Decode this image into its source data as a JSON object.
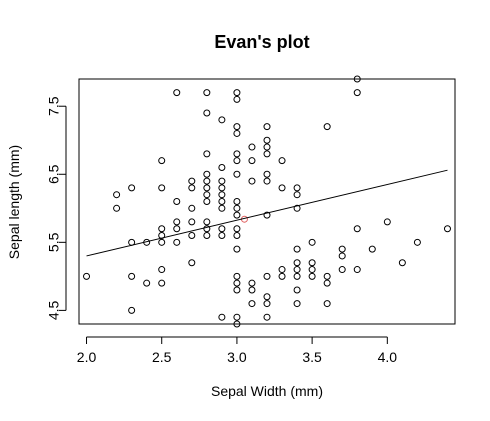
{
  "chart_data": {
    "type": "scatter",
    "title": "Evan's plot",
    "xlabel": "Sepal Width (mm)",
    "ylabel": "Sepal length (mm)",
    "xlim": [
      1.95,
      4.45
    ],
    "ylim": [
      4.3,
      7.9
    ],
    "xticks": [
      "2.0",
      "2.5",
      "3.0",
      "3.5",
      "4.0"
    ],
    "yticks": [
      "4.5",
      "5.5",
      "6.5",
      "7.5"
    ],
    "grid": false,
    "legend": "none",
    "colors": {
      "point_stroke": "#000000",
      "highlight_point_stroke": "#e06060",
      "trend_line": "#000000",
      "axes": "#000000",
      "background": "#ffffff"
    },
    "trend_line": {
      "x": [
        2.0,
        4.4
      ],
      "y": [
        5.3,
        6.56
      ]
    },
    "highlight_point": {
      "x": 3.05,
      "y": 5.84
    },
    "points": [
      [
        2.0,
        5.0
      ],
      [
        2.2,
        6.0
      ],
      [
        2.2,
        6.2
      ],
      [
        2.3,
        4.5
      ],
      [
        2.3,
        5.0
      ],
      [
        2.3,
        5.5
      ],
      [
        2.3,
        6.3
      ],
      [
        2.4,
        4.9
      ],
      [
        2.4,
        5.5
      ],
      [
        2.5,
        4.9
      ],
      [
        2.5,
        5.1
      ],
      [
        2.5,
        5.5
      ],
      [
        2.5,
        5.6
      ],
      [
        2.5,
        5.7
      ],
      [
        2.5,
        6.3
      ],
      [
        2.5,
        6.7
      ],
      [
        2.6,
        5.5
      ],
      [
        2.6,
        5.7
      ],
      [
        2.6,
        5.8
      ],
      [
        2.6,
        6.1
      ],
      [
        2.6,
        7.7
      ],
      [
        2.7,
        5.2
      ],
      [
        2.7,
        5.6
      ],
      [
        2.7,
        5.8
      ],
      [
        2.7,
        6.0
      ],
      [
        2.7,
        6.3
      ],
      [
        2.7,
        6.4
      ],
      [
        2.8,
        5.6
      ],
      [
        2.8,
        5.7
      ],
      [
        2.8,
        5.8
      ],
      [
        2.8,
        6.1
      ],
      [
        2.8,
        6.2
      ],
      [
        2.8,
        6.3
      ],
      [
        2.8,
        6.4
      ],
      [
        2.8,
        6.5
      ],
      [
        2.8,
        6.8
      ],
      [
        2.8,
        7.4
      ],
      [
        2.8,
        7.7
      ],
      [
        2.9,
        4.4
      ],
      [
        2.9,
        5.6
      ],
      [
        2.9,
        5.7
      ],
      [
        2.9,
        6.0
      ],
      [
        2.9,
        6.1
      ],
      [
        2.9,
        6.2
      ],
      [
        2.9,
        6.3
      ],
      [
        2.9,
        6.4
      ],
      [
        2.9,
        6.6
      ],
      [
        2.9,
        7.3
      ],
      [
        3.0,
        4.3
      ],
      [
        3.0,
        4.4
      ],
      [
        3.0,
        4.8
      ],
      [
        3.0,
        4.9
      ],
      [
        3.0,
        5.0
      ],
      [
        3.0,
        5.4
      ],
      [
        3.0,
        5.6
      ],
      [
        3.0,
        5.7
      ],
      [
        3.0,
        5.9
      ],
      [
        3.0,
        6.0
      ],
      [
        3.0,
        6.1
      ],
      [
        3.0,
        6.5
      ],
      [
        3.0,
        6.7
      ],
      [
        3.0,
        6.8
      ],
      [
        3.0,
        7.1
      ],
      [
        3.0,
        7.2
      ],
      [
        3.0,
        7.6
      ],
      [
        3.0,
        7.7
      ],
      [
        3.1,
        4.6
      ],
      [
        3.1,
        4.8
      ],
      [
        3.1,
        4.9
      ],
      [
        3.1,
        6.4
      ],
      [
        3.1,
        6.7
      ],
      [
        3.1,
        6.9
      ],
      [
        3.2,
        4.4
      ],
      [
        3.2,
        4.6
      ],
      [
        3.2,
        4.7
      ],
      [
        3.2,
        5.0
      ],
      [
        3.2,
        5.9
      ],
      [
        3.2,
        6.4
      ],
      [
        3.2,
        6.5
      ],
      [
        3.2,
        6.8
      ],
      [
        3.2,
        6.9
      ],
      [
        3.2,
        7.0
      ],
      [
        3.2,
        7.2
      ],
      [
        3.3,
        5.0
      ],
      [
        3.3,
        5.1
      ],
      [
        3.3,
        6.3
      ],
      [
        3.3,
        6.7
      ],
      [
        3.4,
        4.6
      ],
      [
        3.4,
        4.8
      ],
      [
        3.4,
        5.0
      ],
      [
        3.4,
        5.1
      ],
      [
        3.4,
        5.2
      ],
      [
        3.4,
        5.4
      ],
      [
        3.4,
        6.0
      ],
      [
        3.4,
        6.2
      ],
      [
        3.4,
        6.3
      ],
      [
        3.5,
        5.0
      ],
      [
        3.5,
        5.1
      ],
      [
        3.5,
        5.2
      ],
      [
        3.5,
        5.5
      ],
      [
        3.6,
        4.6
      ],
      [
        3.6,
        4.9
      ],
      [
        3.6,
        5.0
      ],
      [
        3.6,
        7.2
      ],
      [
        3.7,
        5.1
      ],
      [
        3.7,
        5.3
      ],
      [
        3.7,
        5.4
      ],
      [
        3.8,
        5.1
      ],
      [
        3.8,
        5.7
      ],
      [
        3.8,
        7.7
      ],
      [
        3.8,
        7.9
      ],
      [
        3.9,
        5.4
      ],
      [
        4.0,
        5.8
      ],
      [
        4.1,
        5.2
      ],
      [
        4.2,
        5.5
      ],
      [
        4.4,
        5.7
      ]
    ]
  }
}
